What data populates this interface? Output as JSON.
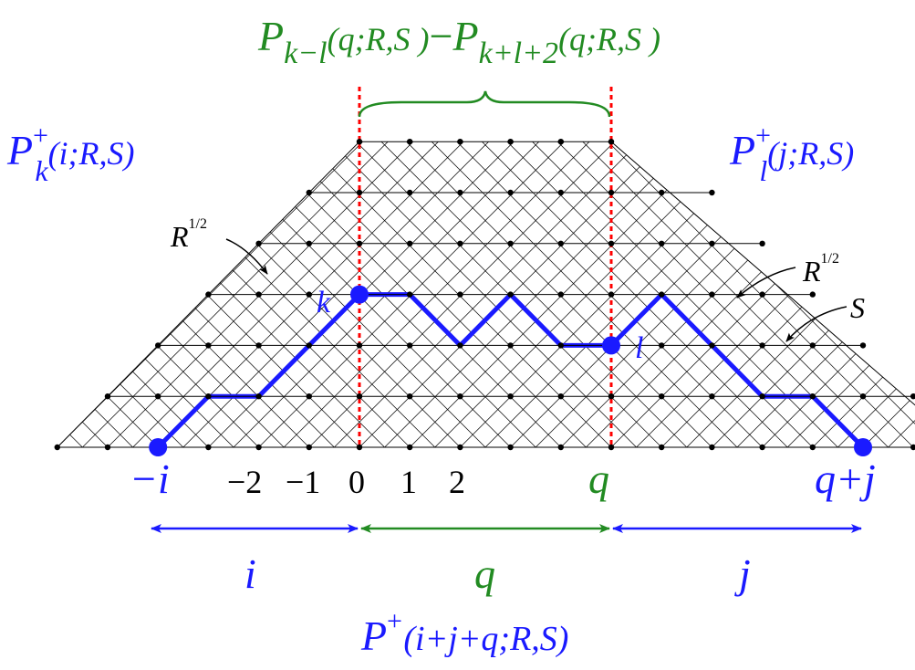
{
  "colors": {
    "blue": "#1a1aff",
    "green": "#228b22",
    "red": "#ff0000",
    "black": "#000000"
  },
  "lattice": {
    "rows": [
      {
        "height": 0,
        "x_min": -6,
        "x_max": 12
      },
      {
        "height": 1,
        "x_min": -5,
        "x_max": 11
      },
      {
        "height": 2,
        "x_min": -4,
        "x_max": 10
      },
      {
        "height": 3,
        "x_min": -3,
        "x_max": 9
      },
      {
        "height": 4,
        "x_min": -2,
        "x_max": 8
      },
      {
        "height": 5,
        "x_min": -1,
        "x_max": 7
      },
      {
        "height": 6,
        "x_min": 0,
        "x_max": 5
      }
    ],
    "x_start": -6,
    "x_end": 12,
    "top_height": 6
  },
  "path": {
    "points": [
      [
        -4,
        0
      ],
      [
        -3,
        1
      ],
      [
        -2,
        1
      ],
      [
        -1,
        2
      ],
      [
        0,
        3
      ],
      [
        1,
        3
      ],
      [
        2,
        2
      ],
      [
        3,
        3
      ],
      [
        4,
        2
      ],
      [
        5,
        2
      ],
      [
        6,
        3
      ],
      [
        7,
        2
      ],
      [
        8,
        1
      ],
      [
        9,
        1
      ],
      [
        10,
        0
      ]
    ],
    "markers": [
      [
        -4,
        0
      ],
      [
        0,
        3
      ],
      [
        5,
        2
      ],
      [
        10,
        0
      ]
    ]
  },
  "dividers": {
    "left_x": 0,
    "right_x": 5
  },
  "labels": {
    "top_formula": {
      "main1": "P",
      "sub1": "k−l",
      "args1": "(q;R,S )",
      "minus": "−",
      "main2": "P",
      "sub2": "k+l+2",
      "args2": "(q;R,S )"
    },
    "left_formula": {
      "main": "P",
      "sup": "+",
      "sub": "k",
      "args": "(i;R,S)"
    },
    "right_formula": {
      "main": "P",
      "sup": "+",
      "sub": "l",
      "args": "(j;R,S)"
    },
    "bottom_formula": {
      "main": "P",
      "sup": "+",
      "args": "(i+j+q;R,S)"
    },
    "r_half_left": {
      "base": "R",
      "sup": "1/2"
    },
    "r_half_right": {
      "base": "R",
      "sup": "1/2"
    },
    "s_label": "S",
    "point_k": "k",
    "point_l": "l",
    "axis": {
      "minus_i": "−i",
      "minus_2": "−2",
      "minus_1": "−1",
      "zero": "0",
      "one": "1",
      "two": "2",
      "q": "q",
      "q_plus_j": "q+j"
    },
    "spans": {
      "i": "i",
      "q": "q",
      "j": "j"
    }
  }
}
